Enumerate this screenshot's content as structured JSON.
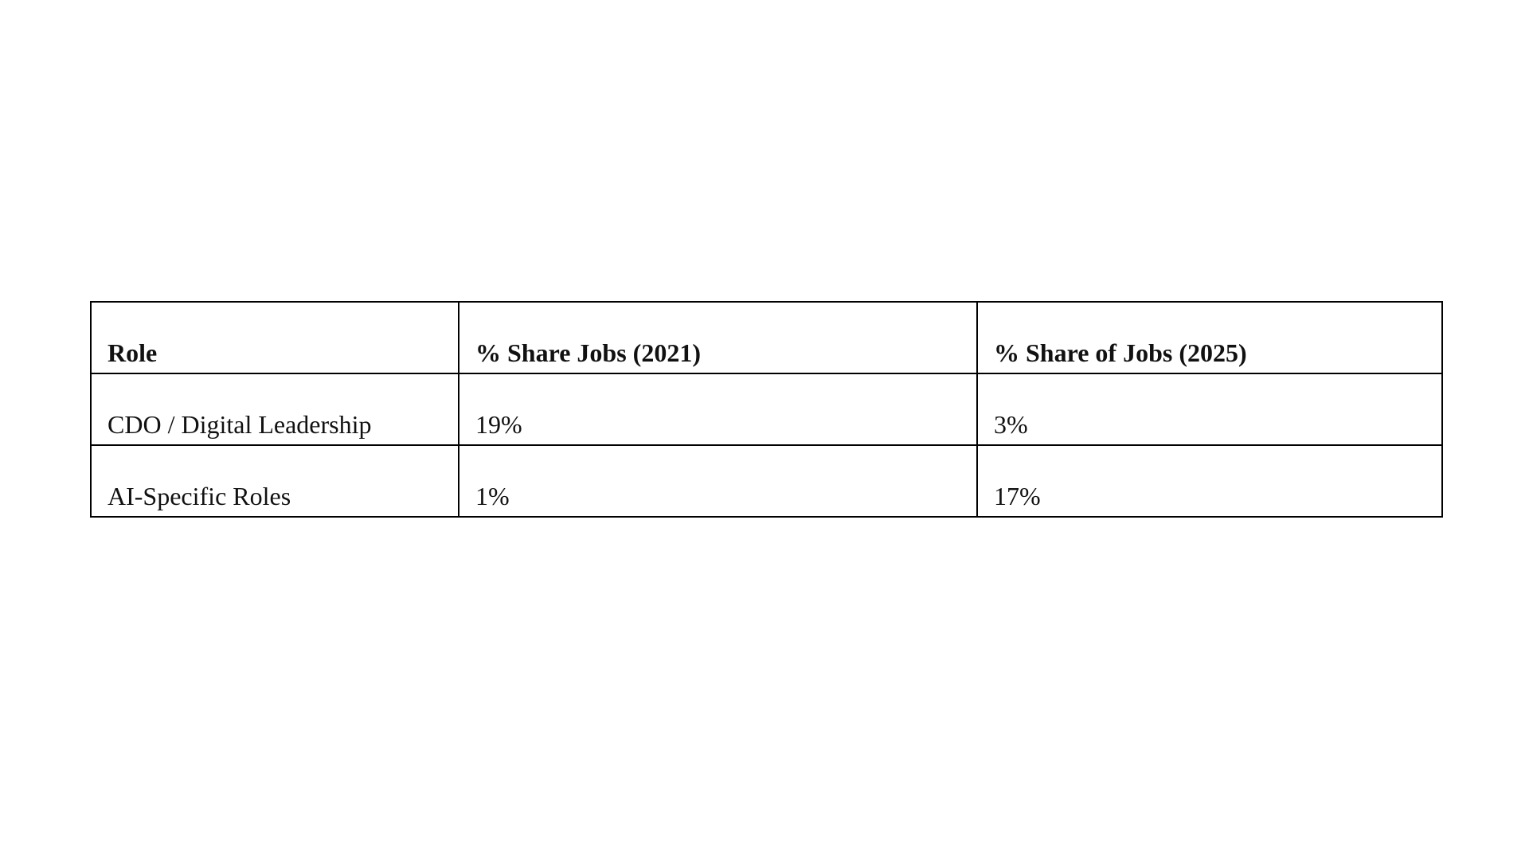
{
  "table": {
    "header": [
      "Role",
      "% Share Jobs (2021)",
      "% Share of Jobs (2025)"
    ],
    "rows": [
      [
        "CDO / Digital Leadership",
        "19%",
        "3%"
      ],
      [
        "AI-Specific Roles",
        "1%",
        "17%"
      ]
    ]
  }
}
